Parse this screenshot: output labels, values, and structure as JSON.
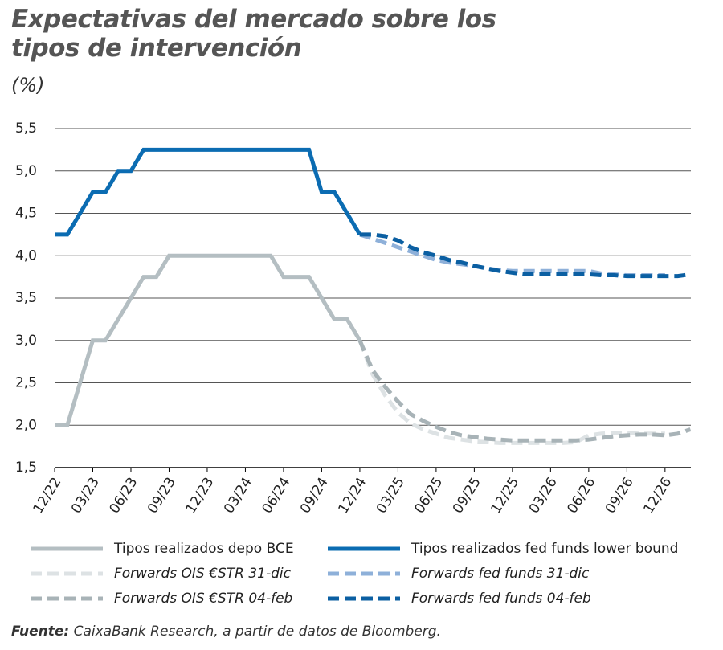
{
  "chart_data": {
    "type": "line",
    "title": "Expectativas del mercado sobre los tipos de intervención",
    "subtitle": "(%)",
    "source_label": "Fuente:",
    "source": "CaixaBank Research, a partir de datos de Bloomberg.",
    "categories": [
      "12/22",
      null,
      null,
      "03/23",
      null,
      null,
      "06/23",
      null,
      null,
      "09/23",
      null,
      null,
      "12/23",
      null,
      null,
      "03/24",
      null,
      null,
      "06/24",
      null,
      null,
      "09/24",
      null,
      null,
      "12/24",
      null,
      null,
      "03/25",
      null,
      null,
      "06/25",
      null,
      null,
      "09/25",
      null,
      null,
      "12/25",
      null,
      null,
      "03/26",
      null,
      null,
      "06/26",
      null,
      null,
      "09/26",
      null,
      null,
      "12/26",
      null,
      null
    ],
    "ylim": [
      1.5,
      5.5
    ],
    "yticks": [
      {
        "value": 1.5,
        "label": "1,5"
      },
      {
        "value": 2.0,
        "label": "2,0"
      },
      {
        "value": 2.5,
        "label": "2,5"
      },
      {
        "value": 3.0,
        "label": "3,0"
      },
      {
        "value": 3.5,
        "label": "3,5"
      },
      {
        "value": 4.0,
        "label": "4,0"
      },
      {
        "value": 4.5,
        "label": "4,5"
      },
      {
        "value": 5.0,
        "label": "5,0"
      },
      {
        "value": 5.5,
        "label": "5,5"
      }
    ],
    "grid": true,
    "series": [
      {
        "name": "Tipos realizados depo BCE",
        "color": "#b4bec2",
        "dash": false,
        "values": [
          2.0,
          2.0,
          2.5,
          3.0,
          3.0,
          3.25,
          3.5,
          3.75,
          3.75,
          4.0,
          4.0,
          4.0,
          4.0,
          4.0,
          4.0,
          4.0,
          4.0,
          4.0,
          3.75,
          3.75,
          3.75,
          3.5,
          3.25,
          3.25,
          3.0,
          null,
          null,
          null,
          null,
          null,
          null,
          null,
          null,
          null,
          null,
          null,
          null,
          null,
          null,
          null,
          null,
          null,
          null,
          null,
          null,
          null,
          null,
          null,
          null,
          null,
          null
        ]
      },
      {
        "name": "Tipos realizados fed funds lower bound",
        "color": "#0b6cb2",
        "dash": false,
        "values": [
          4.25,
          4.25,
          4.5,
          4.75,
          4.75,
          5.0,
          5.0,
          5.25,
          5.25,
          5.25,
          5.25,
          5.25,
          5.25,
          5.25,
          5.25,
          5.25,
          5.25,
          5.25,
          5.25,
          5.25,
          5.25,
          4.75,
          4.75,
          4.5,
          4.25,
          null,
          null,
          null,
          null,
          null,
          null,
          null,
          null,
          null,
          null,
          null,
          null,
          null,
          null,
          null,
          null,
          null,
          null,
          null,
          null,
          null,
          null,
          null,
          null,
          null,
          null
        ]
      },
      {
        "name": "Forwards OIS €STR 31-dic",
        "color": "#dde2e4",
        "dash": true,
        "values": [
          null,
          null,
          null,
          null,
          null,
          null,
          null,
          null,
          null,
          null,
          null,
          null,
          null,
          null,
          null,
          null,
          null,
          null,
          null,
          null,
          null,
          null,
          null,
          null,
          3.0,
          2.6,
          2.35,
          2.15,
          2.02,
          1.95,
          1.9,
          1.85,
          1.83,
          1.81,
          1.8,
          1.79,
          1.79,
          1.79,
          1.79,
          1.79,
          1.79,
          1.8,
          1.88,
          1.9,
          1.91,
          1.91,
          1.9,
          1.9,
          1.9,
          null,
          null
        ]
      },
      {
        "name": "Forwards fed funds 31-dic",
        "color": "#8eb0d9",
        "dash": true,
        "values": [
          null,
          null,
          null,
          null,
          null,
          null,
          null,
          null,
          null,
          null,
          null,
          null,
          null,
          null,
          null,
          null,
          null,
          null,
          null,
          null,
          null,
          null,
          null,
          null,
          4.25,
          4.2,
          4.15,
          4.1,
          4.05,
          4.0,
          3.95,
          3.92,
          3.9,
          3.88,
          3.85,
          3.83,
          3.82,
          3.82,
          3.82,
          3.82,
          3.82,
          3.82,
          3.82,
          3.79,
          3.78,
          3.77,
          3.77,
          3.77,
          3.77,
          null,
          null
        ]
      },
      {
        "name": "Forwards OIS €STR 04-feb",
        "color": "#a8b3b7",
        "dash": true,
        "values": [
          null,
          null,
          null,
          null,
          null,
          null,
          null,
          null,
          null,
          null,
          null,
          null,
          null,
          null,
          null,
          null,
          null,
          null,
          null,
          null,
          null,
          null,
          null,
          null,
          3.0,
          2.65,
          2.45,
          2.28,
          2.13,
          2.05,
          1.98,
          1.92,
          1.88,
          1.86,
          1.84,
          1.83,
          1.82,
          1.82,
          1.82,
          1.82,
          1.82,
          1.82,
          1.83,
          1.85,
          1.87,
          1.88,
          1.89,
          1.89,
          1.88,
          1.9,
          1.95
        ]
      },
      {
        "name": "Forwards fed funds 04-feb",
        "color": "#0b5fa2",
        "dash": true,
        "values": [
          null,
          null,
          null,
          null,
          null,
          null,
          null,
          null,
          null,
          null,
          null,
          null,
          null,
          null,
          null,
          null,
          null,
          null,
          null,
          null,
          null,
          null,
          null,
          null,
          4.25,
          4.25,
          4.23,
          4.18,
          4.1,
          4.04,
          4.0,
          3.95,
          3.92,
          3.88,
          3.85,
          3.82,
          3.8,
          3.78,
          3.78,
          3.78,
          3.78,
          3.78,
          3.78,
          3.77,
          3.77,
          3.76,
          3.76,
          3.76,
          3.76,
          3.76,
          3.78
        ]
      }
    ]
  }
}
